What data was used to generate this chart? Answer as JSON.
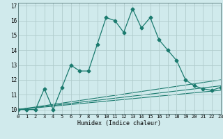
{
  "xlabel": "Humidex (Indice chaleur)",
  "main_x": [
    0,
    1,
    2,
    3,
    4,
    5,
    6,
    7,
    8,
    9,
    10,
    11,
    12,
    13,
    14,
    15,
    16,
    17,
    18,
    19,
    20,
    21,
    22,
    23
  ],
  "main_y": [
    10,
    10,
    10,
    11.4,
    10,
    11.5,
    13.0,
    12.6,
    12.6,
    14.4,
    16.2,
    16.0,
    15.2,
    16.8,
    15.5,
    16.2,
    14.7,
    14.0,
    13.3,
    12.0,
    11.6,
    11.4,
    11.3,
    11.5
  ],
  "line1_x": [
    0,
    23
  ],
  "line1_y": [
    10,
    11.3
  ],
  "line2_x": [
    0,
    23
  ],
  "line2_y": [
    10,
    11.6
  ],
  "line3_x": [
    0,
    23
  ],
  "line3_y": [
    10,
    12.0
  ],
  "xlim": [
    0,
    23
  ],
  "ylim": [
    9.7,
    17.2
  ],
  "yticks": [
    10,
    11,
    12,
    13,
    14,
    15,
    16,
    17
  ],
  "xticks": [
    0,
    1,
    2,
    3,
    4,
    5,
    6,
    7,
    8,
    9,
    10,
    11,
    12,
    13,
    14,
    15,
    16,
    17,
    18,
    19,
    20,
    21,
    22,
    23
  ],
  "line_color": "#1a7a6e",
  "bg_color": "#d0eaec",
  "grid_color": "#b0cccc"
}
